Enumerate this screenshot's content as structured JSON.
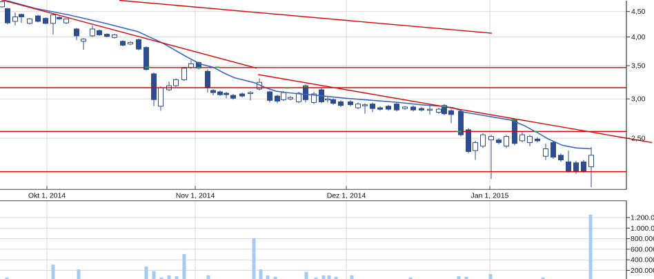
{
  "chart_data": {
    "type": "candlestick",
    "subtype": "price-with-volume-pane",
    "title": "",
    "scale": "logarithmic",
    "x_axis": {
      "tick_labels": [
        "Okt 1, 2014",
        "Nov 1, 2014",
        "Dez 1, 2014",
        "Jan 1, 2015"
      ],
      "tick_x": [
        68,
        283,
        502,
        710
      ]
    },
    "price_axis": {
      "side": "right",
      "tick_labels": [
        "4,50",
        "4,00",
        "3,50",
        "3,00",
        "2,50"
      ],
      "tick_values": [
        4.5,
        4.0,
        3.5,
        3.0,
        2.5
      ],
      "range": [
        1.95,
        4.78
      ]
    },
    "volume_axis": {
      "side": "right",
      "tick_labels": [
        "1.200.000",
        "1.000.000",
        "800.000",
        "600.000",
        "400.000",
        "200.000"
      ],
      "tick_values": [
        1200000,
        1000000,
        800000,
        600000,
        400000,
        200000
      ],
      "range": [
        0,
        1300000
      ]
    },
    "candles": [
      [
        3,
        4.6,
        4.73,
        4.58,
        4.71
      ],
      [
        11,
        4.56,
        4.58,
        4.24,
        4.27
      ],
      [
        22,
        4.3,
        4.48,
        4.22,
        4.39
      ],
      [
        31,
        4.44,
        4.46,
        4.27,
        4.39
      ],
      [
        43,
        4.26,
        4.37,
        4.24,
        4.35
      ],
      [
        55,
        4.41,
        4.43,
        4.28,
        4.3
      ],
      [
        66,
        4.36,
        4.38,
        4.24,
        4.26
      ],
      [
        77,
        4.26,
        4.45,
        4.04,
        4.43
      ],
      [
        86,
        4.38,
        4.4,
        4.33,
        4.35
      ],
      [
        96,
        4.27,
        4.36,
        4.25,
        4.35
      ],
      [
        111,
        4.15,
        4.17,
        3.94,
        4.02
      ],
      [
        121,
        3.92,
        3.98,
        3.77,
        3.96
      ],
      [
        134,
        4.02,
        4.22,
        4.0,
        4.15
      ],
      [
        144,
        4.12,
        4.14,
        4.02,
        4.04
      ],
      [
        155,
        4.05,
        4.07,
        3.99,
        4.01
      ],
      [
        166,
        3.99,
        4.06,
        3.97,
        4.04
      ],
      [
        178,
        3.92,
        3.94,
        3.83,
        3.85
      ],
      [
        189,
        3.87,
        3.92,
        3.85,
        3.9
      ],
      [
        201,
        3.95,
        3.97,
        3.76,
        3.78
      ],
      [
        212,
        3.81,
        3.83,
        3.42,
        3.44
      ],
      [
        223,
        3.37,
        3.39,
        2.9,
        2.99
      ],
      [
        233,
        2.9,
        3.18,
        2.84,
        3.16
      ],
      [
        245,
        3.13,
        3.25,
        3.11,
        3.19
      ],
      [
        255,
        3.19,
        3.3,
        3.17,
        3.28
      ],
      [
        267,
        3.28,
        3.48,
        3.26,
        3.46
      ],
      [
        277,
        3.47,
        3.59,
        3.45,
        3.53
      ],
      [
        288,
        3.55,
        3.57,
        3.44,
        3.46
      ],
      [
        301,
        3.41,
        3.44,
        3.09,
        3.16
      ],
      [
        309,
        3.12,
        3.14,
        3.05,
        3.09
      ],
      [
        319,
        3.1,
        3.12,
        3.04,
        3.06
      ],
      [
        328,
        3.08,
        3.1,
        3.01,
        3.06
      ],
      [
        338,
        3.05,
        3.07,
        2.99,
        3.01
      ],
      [
        351,
        3.07,
        3.09,
        3.02,
        3.04
      ],
      [
        363,
        3.08,
        3.11,
        2.98,
        3.09
      ],
      [
        376,
        3.14,
        3.3,
        3.12,
        3.24
      ],
      [
        391,
        3.1,
        3.12,
        2.95,
        2.98
      ],
      [
        402,
        3.04,
        3.06,
        2.94,
        2.97
      ],
      [
        411,
        2.99,
        3.11,
        2.97,
        3.09
      ],
      [
        421,
        3.0,
        3.04,
        2.98,
        3.02
      ],
      [
        433,
        2.96,
        3.1,
        2.94,
        3.08
      ],
      [
        443,
        3.19,
        3.21,
        2.95,
        2.99
      ],
      [
        455,
        2.95,
        3.1,
        2.93,
        3.07
      ],
      [
        466,
        3.13,
        3.15,
        2.94,
        2.96
      ],
      [
        475,
        2.99,
        3.03,
        2.95,
        3.0
      ],
      [
        483,
        2.99,
        3.01,
        2.92,
        2.94
      ],
      [
        494,
        2.96,
        2.98,
        2.89,
        2.91
      ],
      [
        508,
        2.96,
        2.98,
        2.9,
        2.92
      ],
      [
        519,
        2.88,
        2.95,
        2.86,
        2.93
      ],
      [
        529,
        2.91,
        2.94,
        2.8,
        2.92
      ],
      [
        540,
        2.93,
        2.95,
        2.82,
        2.87
      ],
      [
        551,
        2.88,
        2.9,
        2.84,
        2.86
      ],
      [
        563,
        2.9,
        2.92,
        2.84,
        2.86
      ],
      [
        575,
        2.93,
        2.95,
        2.83,
        2.85
      ],
      [
        587,
        2.87,
        2.9,
        2.85,
        2.89
      ],
      [
        599,
        2.89,
        2.91,
        2.83,
        2.85
      ],
      [
        611,
        2.87,
        2.89,
        2.83,
        2.85
      ],
      [
        623,
        2.85,
        2.91,
        2.79,
        2.86
      ],
      [
        636,
        2.82,
        2.88,
        2.8,
        2.86
      ],
      [
        644,
        2.91,
        2.93,
        2.78,
        2.8
      ],
      [
        654,
        2.84,
        2.86,
        2.68,
        2.79
      ],
      [
        668,
        2.83,
        2.85,
        2.52,
        2.54
      ],
      [
        679,
        2.6,
        2.62,
        2.33,
        2.35
      ],
      [
        689,
        2.36,
        2.47,
        2.26,
        2.45
      ],
      [
        700,
        2.41,
        2.56,
        2.39,
        2.54
      ],
      [
        712,
        2.48,
        2.54,
        2.07,
        2.52
      ],
      [
        723,
        2.48,
        2.5,
        2.43,
        2.45
      ],
      [
        734,
        2.41,
        2.54,
        2.39,
        2.52
      ],
      [
        746,
        2.71,
        2.73,
        2.42,
        2.44
      ],
      [
        757,
        2.47,
        2.58,
        2.45,
        2.54
      ],
      [
        768,
        2.45,
        2.54,
        2.41,
        2.52
      ],
      [
        779,
        2.49,
        2.51,
        2.45,
        2.47
      ],
      [
        791,
        2.3,
        2.44,
        2.26,
        2.38
      ],
      [
        802,
        2.45,
        2.47,
        2.27,
        2.29
      ],
      [
        813,
        2.31,
        2.33,
        2.24,
        2.26
      ],
      [
        824,
        2.24,
        2.36,
        2.13,
        2.14
      ],
      [
        835,
        2.23,
        2.25,
        2.12,
        2.14
      ],
      [
        846,
        2.24,
        2.26,
        2.13,
        2.14
      ],
      [
        857,
        2.19,
        2.4,
        1.99,
        2.31
      ]
    ],
    "volume_bars": [
      [
        10,
        65000
      ],
      [
        77,
        310000
      ],
      [
        114,
        220000
      ],
      [
        212,
        275000
      ],
      [
        223,
        185000
      ],
      [
        234,
        65000
      ],
      [
        245,
        105000
      ],
      [
        256,
        90000
      ],
      [
        267,
        510000
      ],
      [
        302,
        105000
      ],
      [
        368,
        810000
      ],
      [
        378,
        220000
      ],
      [
        388,
        105000
      ],
      [
        399,
        78000
      ],
      [
        444,
        170000
      ],
      [
        458,
        65000
      ],
      [
        469,
        105000
      ],
      [
        477,
        105000
      ],
      [
        487,
        78000
      ],
      [
        510,
        105000
      ],
      [
        595,
        65000
      ],
      [
        665,
        90000
      ],
      [
        676,
        78000
      ],
      [
        711,
        130000
      ],
      [
        787,
        65000
      ],
      [
        856,
        1255000
      ]
    ],
    "ma_line": {
      "name": "moving-average",
      "points": [
        [
          5,
          4.74
        ],
        [
          13,
          4.72
        ],
        [
          50,
          4.57
        ],
        [
          100,
          4.43
        ],
        [
          150,
          4.27
        ],
        [
          200,
          4.1
        ],
        [
          237,
          3.88
        ],
        [
          270,
          3.65
        ],
        [
          290,
          3.53
        ],
        [
          310,
          3.47
        ],
        [
          325,
          3.38
        ],
        [
          340,
          3.31
        ],
        [
          355,
          3.27
        ],
        [
          370,
          3.23
        ],
        [
          385,
          3.16
        ],
        [
          400,
          3.11
        ],
        [
          415,
          3.09
        ],
        [
          435,
          3.07
        ],
        [
          460,
          3.05
        ],
        [
          500,
          3.01
        ],
        [
          540,
          2.98
        ],
        [
          580,
          2.95
        ],
        [
          610,
          2.92
        ],
        [
          640,
          2.9
        ],
        [
          657,
          2.88
        ],
        [
          673,
          2.82
        ],
        [
          700,
          2.78
        ],
        [
          720,
          2.75
        ],
        [
          740,
          2.72
        ],
        [
          760,
          2.65
        ],
        [
          780,
          2.56
        ],
        [
          795,
          2.49
        ],
        [
          815,
          2.42
        ],
        [
          835,
          2.39
        ],
        [
          857,
          2.38
        ]
      ]
    },
    "horizontal_levels": [
      3.47,
      3.16,
      2.58,
      2.14
    ],
    "trendlines": [
      {
        "name": "upper-trendline",
        "from": [
          0,
          4.76
        ],
        "to": [
          372,
          3.46
        ]
      },
      {
        "name": "top-trendline",
        "from": [
          173,
          4.74
        ],
        "to": [
          713,
          4.07
        ]
      },
      {
        "name": "lower-trendline",
        "from": [
          374,
          3.36
        ],
        "to": [
          945,
          2.45
        ]
      }
    ],
    "touch_marks": [
      [
        210,
        217,
        97.5
      ],
      [
        285,
        291,
        98
      ],
      [
        312,
        318,
        97.5
      ],
      [
        413,
        420,
        127.3
      ],
      [
        440,
        446,
        125.5
      ],
      [
        640,
        647,
        154
      ],
      [
        740,
        750,
        173.5
      ],
      [
        662,
        669,
        190.5
      ],
      [
        774,
        781,
        190.5
      ]
    ],
    "colors": {
      "candle": "#2e4d8e",
      "candle_up_fill": "#ffffff",
      "ma_line": "#3a66c8",
      "level_line": "#e10000",
      "trend_line": "#e10000",
      "touch_mark": "#2e9e3e",
      "volume_bar": "#a6cbf0",
      "grid": "#d9d9d9",
      "axis": "#333333",
      "band_border": "#444444",
      "label": "#111111",
      "background": "#ffffff"
    }
  }
}
